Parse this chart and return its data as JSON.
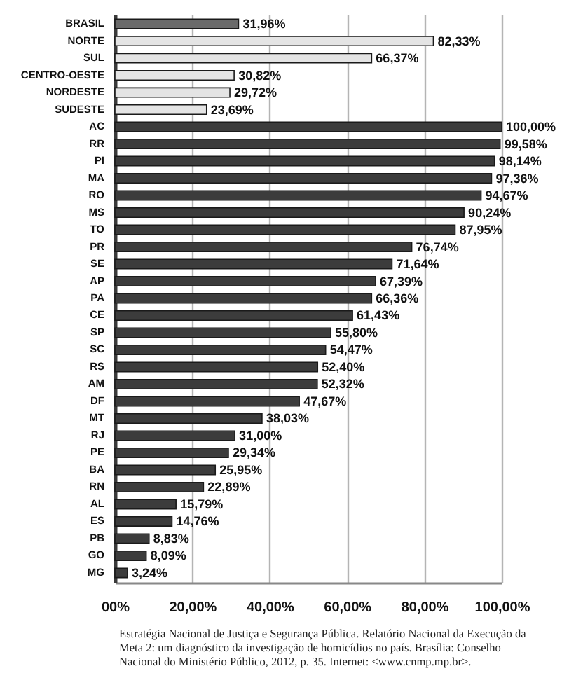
{
  "chart_data": {
    "type": "bar",
    "orientation": "horizontal",
    "categories": [
      "BRASIL",
      "NORTE",
      "SUL",
      "CENTRO-OESTE",
      "NORDESTE",
      "SUDESTE",
      "AC",
      "RR",
      "PI",
      "MA",
      "RO",
      "MS",
      "TO",
      "PR",
      "SE",
      "AP",
      "PA",
      "CE",
      "SP",
      "SC",
      "RS",
      "AM",
      "DF",
      "MT",
      "RJ",
      "PE",
      "BA",
      "RN",
      "AL",
      "ES",
      "PB",
      "GO",
      "MG"
    ],
    "values": [
      31.96,
      82.33,
      66.37,
      30.82,
      29.72,
      23.69,
      100.0,
      99.58,
      98.14,
      97.36,
      94.67,
      90.24,
      87.95,
      76.74,
      71.64,
      67.39,
      66.36,
      61.43,
      55.8,
      54.47,
      52.4,
      52.32,
      47.67,
      38.03,
      31.0,
      29.34,
      25.95,
      22.89,
      15.79,
      14.76,
      8.83,
      8.09,
      3.24
    ],
    "value_labels": [
      "31,96%",
      "82,33%",
      "66,37%",
      "30,82%",
      "29,72%",
      "23,69%",
      "100,00%",
      "99,58%",
      "98,14%",
      "97,36%",
      "94,67%",
      "90,24%",
      "87,95%",
      "76,74%",
      "71,64%",
      "67,39%",
      "66,36%",
      "61,43%",
      "55,80%",
      "54,47%",
      "52,40%",
      "52,32%",
      "47,67%",
      "38,03%",
      "31,00%",
      "29,34%",
      "25,95%",
      "22,89%",
      "15,79%",
      "14,76%",
      "8,83%",
      "8,09%",
      "3,24%"
    ],
    "colors": [
      "#6a6a6a",
      "#e4e4e4",
      "#e4e4e4",
      "#e4e4e4",
      "#e4e4e4",
      "#e4e4e4",
      "#3c3c3c",
      "#3c3c3c",
      "#3c3c3c",
      "#3c3c3c",
      "#3c3c3c",
      "#3c3c3c",
      "#3c3c3c",
      "#3c3c3c",
      "#3c3c3c",
      "#3c3c3c",
      "#3c3c3c",
      "#3c3c3c",
      "#3c3c3c",
      "#3c3c3c",
      "#3c3c3c",
      "#3c3c3c",
      "#3c3c3c",
      "#3c3c3c",
      "#3c3c3c",
      "#3c3c3c",
      "#3c3c3c",
      "#3c3c3c",
      "#3c3c3c",
      "#3c3c3c",
      "#3c3c3c",
      "#3c3c3c",
      "#3c3c3c"
    ],
    "xlim": [
      0,
      100
    ],
    "xticks": [
      {
        "value": 0,
        "label": "00%"
      },
      {
        "value": 20,
        "label": "20,00%"
      },
      {
        "value": 40,
        "label": "40,00%"
      },
      {
        "value": 60,
        "label": "60,00%"
      },
      {
        "value": 80,
        "label": "80,00%"
      },
      {
        "value": 100,
        "label": "100,00%"
      }
    ],
    "grid": "x",
    "annotations": [
      "Estratégia Nacional de Justiça e Segurança Pública. Relatório Nacional da Execução da Meta 2: um diagnóstico da investigação de homicídios no país. Brasília: Conselho Nacional do Ministério Público, 2012, p. 35. Internet: <www.cnmp.mp.br>."
    ]
  }
}
